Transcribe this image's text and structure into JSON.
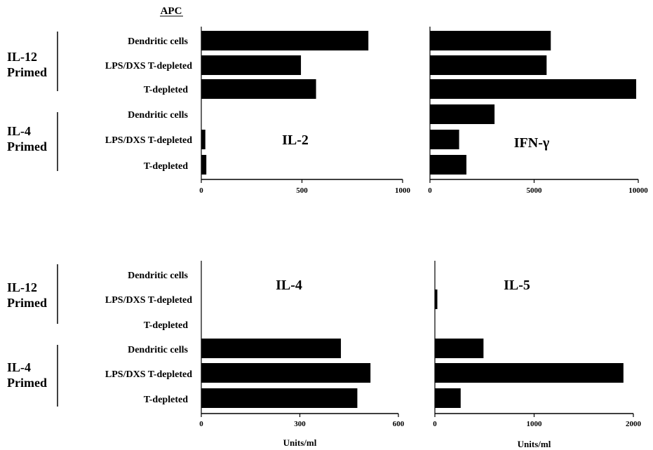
{
  "apc_header": "APC",
  "categories": [
    "Dendritic cells",
    "LPS/DXS T-depleted",
    "T-depleted",
    "Dendritic cells",
    "LPS/DXS T-depleted",
    "T-depleted"
  ],
  "groups": [
    {
      "label_line1": "IL-12",
      "label_line2": "Primed"
    },
    {
      "label_line1": "IL-4",
      "label_line2": "Primed"
    }
  ],
  "bar_color": "#000000",
  "chart_data": [
    {
      "type": "bar",
      "orientation": "horizontal",
      "title": "IL-2",
      "categories": [
        "Dendritic cells",
        "LPS/DXS T-depleted",
        "T-depleted",
        "Dendritic cells",
        "LPS/DXS T-depleted",
        "T-depleted"
      ],
      "values": [
        830,
        495,
        570,
        0,
        20,
        25
      ],
      "xlim": [
        0,
        1000
      ],
      "ticks": [
        0,
        500,
        1000
      ],
      "tick_labels": [
        "0",
        "500",
        "1000"
      ],
      "xlabel": ""
    },
    {
      "type": "bar",
      "orientation": "horizontal",
      "title": "IFN-γ",
      "categories": [
        "Dendritic cells",
        "LPS/DXS T-depleted",
        "T-depleted",
        "Dendritic cells",
        "LPS/DXS T-depleted",
        "T-depleted"
      ],
      "values": [
        5800,
        5600,
        9900,
        3100,
        1400,
        1750
      ],
      "xlim": [
        0,
        10000
      ],
      "ticks": [
        0,
        5000,
        10000
      ],
      "tick_labels": [
        "0",
        "5000",
        "10000"
      ],
      "xlabel": ""
    },
    {
      "type": "bar",
      "orientation": "horizontal",
      "title": "IL-4",
      "categories": [
        "Dendritic cells",
        "LPS/DXS T-depleted",
        "T-depleted",
        "Dendritic cells",
        "LPS/DXS T-depleted",
        "T-depleted"
      ],
      "values": [
        0,
        0,
        0,
        425,
        515,
        475
      ],
      "xlim": [
        0,
        600
      ],
      "ticks": [
        0,
        300,
        600
      ],
      "tick_labels": [
        "0",
        "300",
        "600"
      ],
      "xlabel": "Units/ml"
    },
    {
      "type": "bar",
      "orientation": "horizontal",
      "title": "IL-5",
      "categories": [
        "Dendritic cells",
        "LPS/DXS T-depleted",
        "T-depleted",
        "Dendritic cells",
        "LPS/DXS T-depleted",
        "T-depleted"
      ],
      "values": [
        0,
        25,
        0,
        490,
        1900,
        260
      ],
      "xlim": [
        0,
        2000
      ],
      "ticks": [
        0,
        1000,
        2000
      ],
      "tick_labels": [
        "0",
        "1000",
        "2000"
      ],
      "xlabel": "Units/ml"
    }
  ]
}
